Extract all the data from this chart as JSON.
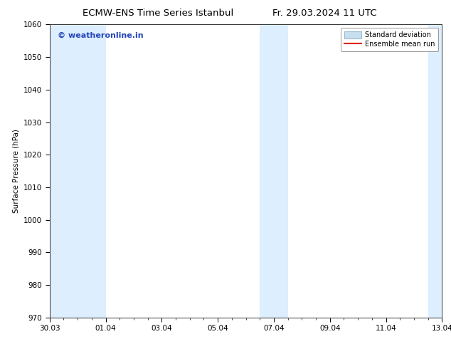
{
  "title_left": "ECMW-ENS Time Series Istanbul",
  "title_right": "Fr. 29.03.2024 11 UTC",
  "ylabel": "Surface Pressure (hPa)",
  "ylim": [
    970,
    1060
  ],
  "yticks": [
    970,
    980,
    990,
    1000,
    1010,
    1020,
    1030,
    1040,
    1050,
    1060
  ],
  "x_start": 0,
  "x_end": 14,
  "xtick_labels": [
    "30.03",
    "01.04",
    "03.04",
    "05.04",
    "07.04",
    "09.04",
    "11.04",
    "13.04"
  ],
  "xtick_positions": [
    0,
    2,
    4,
    6,
    8,
    10,
    12,
    14
  ],
  "shaded_bands": [
    {
      "x_start": 0.0,
      "x_end": 2.0
    },
    {
      "x_start": 7.5,
      "x_end": 8.5
    },
    {
      "x_start": 13.5,
      "x_end": 14.0
    }
  ],
  "shaded_color": "#ddeeff",
  "background_color": "#ffffff",
  "plot_bg_color": "#ffffff",
  "watermark_text": "© weatheronline.in",
  "watermark_color": "#2244bb",
  "legend_std_label": "Standard deviation",
  "legend_mean_label": "Ensemble mean run",
  "legend_std_facecolor": "#c8dff0",
  "legend_std_edgecolor": "#9bbbd4",
  "legend_mean_color": "#dd2200",
  "title_fontsize": 9.5,
  "ylabel_fontsize": 7.5,
  "tick_fontsize": 7.5,
  "watermark_fontsize": 8,
  "legend_fontsize": 7
}
